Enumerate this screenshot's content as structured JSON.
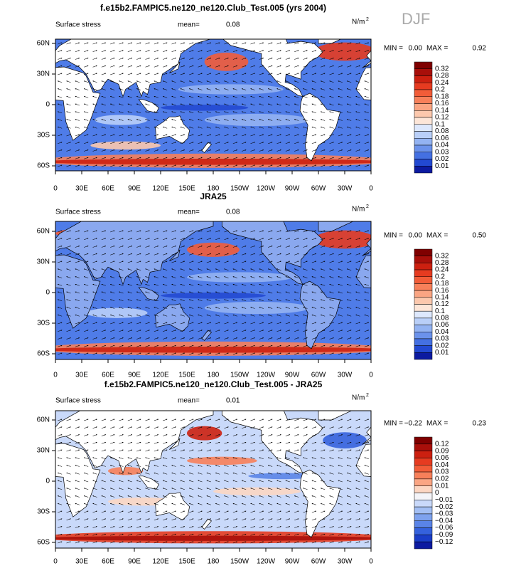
{
  "title": "DJF",
  "panels": [
    {
      "title": "f.e15b2.FAMPIC5.ne120_ne120.Club_Test.005 (yrs 2004)",
      "left_label": "Surface stress",
      "mean_label": "mean=",
      "mean": "0.08",
      "units": "N/m",
      "units_exp": "2",
      "min_label": "MIN =",
      "min": "0.00",
      "max_label": "MAX =",
      "max": "0.92",
      "colorbar": {
        "labels": [
          "0.32",
          "0.28",
          "0.24",
          "0.2",
          "0.18",
          "0.16",
          "0.14",
          "0.12",
          "0.1",
          "0.08",
          "0.06",
          "0.04",
          "0.03",
          "0.02",
          "0.01"
        ],
        "colors": [
          "#7f0000",
          "#a80f0a",
          "#cc2010",
          "#e63b20",
          "#f25c38",
          "#f7805a",
          "#faa583",
          "#fcc8ad",
          "#fde6d8",
          "#dde8fd",
          "#b9cff8",
          "#93b3f2",
          "#6b92eb",
          "#4470e2",
          "#2249d2",
          "#0c1aa0"
        ]
      },
      "x_ticks": [
        "0",
        "30E",
        "60E",
        "90E",
        "120E",
        "150E",
        "180",
        "150W",
        "120W",
        "90W",
        "60W",
        "30W",
        "0"
      ],
      "y_ticks": [
        "60N",
        "30N",
        "0",
        "30S",
        "60S"
      ]
    },
    {
      "title": "JRA25",
      "left_label": "Surface stress",
      "mean_label": "mean=",
      "mean": "0.08",
      "units": "N/m",
      "units_exp": "2",
      "min_label": "MIN =",
      "min": "0.00",
      "max_label": "MAX =",
      "max": "0.50",
      "colorbar": {
        "labels": [
          "0.32",
          "0.28",
          "0.24",
          "0.2",
          "0.18",
          "0.16",
          "0.14",
          "0.12",
          "0.1",
          "0.08",
          "0.06",
          "0.04",
          "0.03",
          "0.02",
          "0.01"
        ],
        "colors": [
          "#7f0000",
          "#a80f0a",
          "#cc2010",
          "#e63b20",
          "#f25c38",
          "#f7805a",
          "#faa583",
          "#fcc8ad",
          "#fde6d8",
          "#dde8fd",
          "#b9cff8",
          "#93b3f2",
          "#6b92eb",
          "#4470e2",
          "#2249d2",
          "#0c1aa0"
        ]
      },
      "x_ticks": [
        "0",
        "30E",
        "60E",
        "90E",
        "120E",
        "150E",
        "180",
        "150W",
        "120W",
        "90W",
        "60W",
        "30W",
        "0"
      ],
      "y_ticks": [
        "60N",
        "30N",
        "0",
        "30S",
        "60S"
      ]
    },
    {
      "title": "f.e15b2.FAMPIC5.ne120_ne120.Club_Test.005 - JRA25",
      "left_label": "Surface stress",
      "mean_label": "mean=",
      "mean": "0.01",
      "units": "N/m",
      "units_exp": "2",
      "min_label": "MIN =",
      "min": "−0.22",
      "max_label": "MAX =",
      "max": "0.23",
      "colorbar": {
        "labels": [
          "0.12",
          "0.09",
          "0.06",
          "0.04",
          "0.03",
          "0.02",
          "0.01",
          "0",
          "−0.01",
          "−0.02",
          "−0.03",
          "−0.04",
          "−0.06",
          "−0.09",
          "−0.12"
        ],
        "colors": [
          "#7f0000",
          "#a80f0a",
          "#cc2010",
          "#e63b20",
          "#f25c38",
          "#f7805a",
          "#faa583",
          "#fcd6c2",
          "#f4f4f8",
          "#c9d9fa",
          "#a3bff4",
          "#7ea2ee",
          "#5a84e7",
          "#3562dd",
          "#1a3ec8",
          "#0c1aa0"
        ]
      },
      "x_ticks": [
        "0",
        "30E",
        "60E",
        "90E",
        "120E",
        "150E",
        "180",
        "150W",
        "120W",
        "90W",
        "60W",
        "30W",
        "0"
      ],
      "y_ticks": [
        "60N",
        "30N",
        "0",
        "30S",
        "60S"
      ]
    }
  ]
}
